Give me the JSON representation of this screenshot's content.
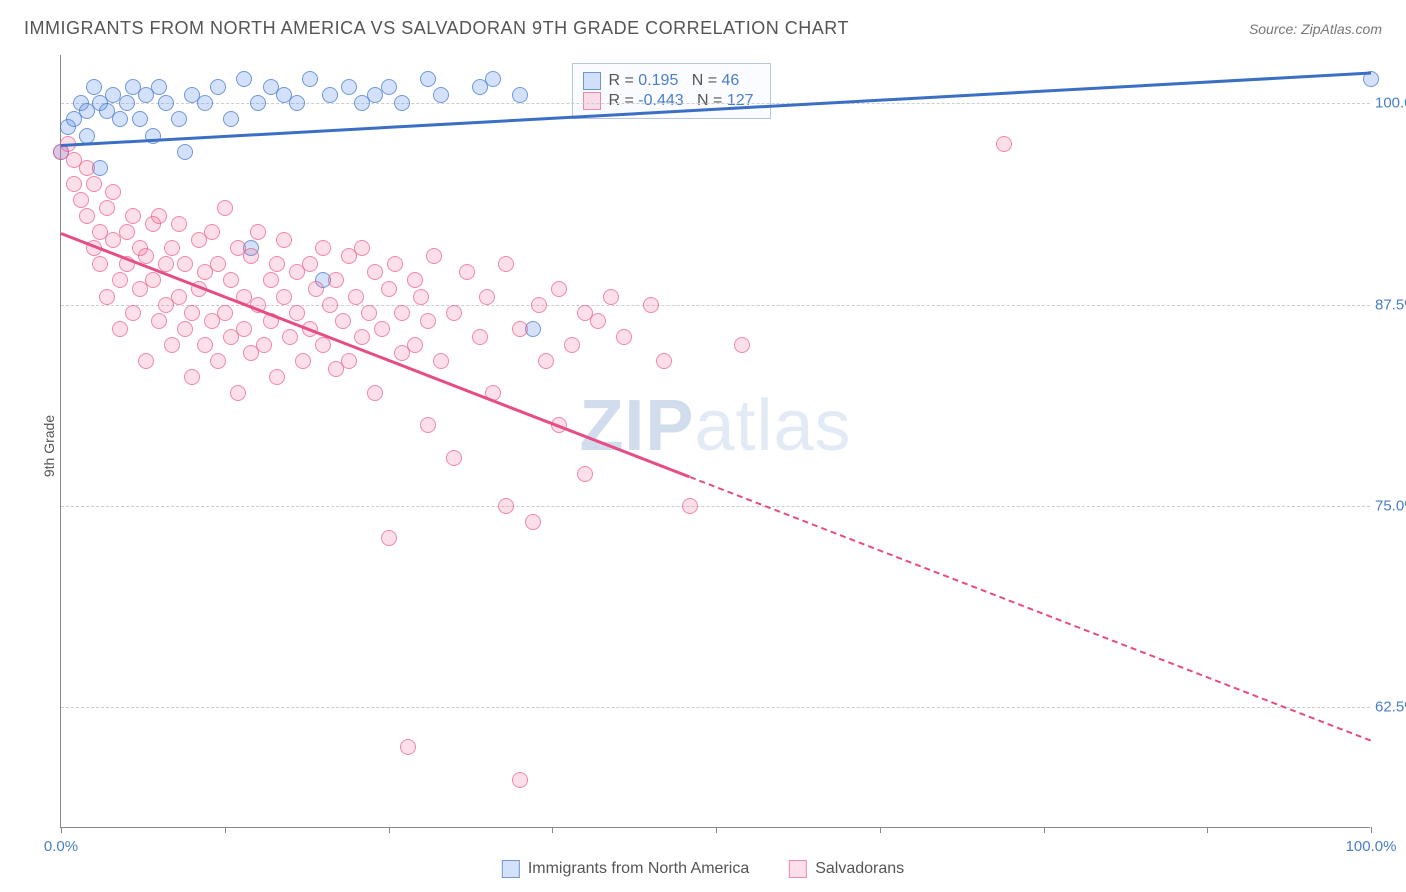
{
  "header": {
    "title": "IMMIGRANTS FROM NORTH AMERICA VS SALVADORAN 9TH GRADE CORRELATION CHART",
    "source_prefix": "Source: ",
    "source": "ZipAtlas.com"
  },
  "chart": {
    "type": "scatter",
    "ylabel": "9th Grade",
    "background_color": "#ffffff",
    "grid_color": "#cccccc",
    "axis_color": "#888888",
    "xlim": [
      0,
      100
    ],
    "ylim": [
      55,
      103
    ],
    "xtick_labels": [
      "0.0%",
      "100.0%"
    ],
    "xtick_positions": [
      0,
      100
    ],
    "xtick_marks": [
      0,
      12.5,
      25,
      37.5,
      50,
      62.5,
      75,
      87.5,
      100
    ],
    "ytick_labels": [
      "62.5%",
      "75.0%",
      "87.5%",
      "100.0%"
    ],
    "ytick_positions": [
      62.5,
      75,
      87.5,
      100
    ],
    "watermark": {
      "bold": "ZIP",
      "rest": "atlas"
    },
    "series": [
      {
        "name": "Immigrants from North America",
        "color_fill": "rgba(100, 149, 237, 0.28)",
        "color_border": "rgba(70, 120, 200, 0.7)",
        "marker_radius": 8,
        "stats": {
          "r_label": "R =",
          "r": "0.195",
          "n_label": "N =",
          "n": "46"
        },
        "trend": {
          "x1": 0,
          "y1": 97.5,
          "x2": 100,
          "y2": 102,
          "color": "#3a6fc4",
          "width": 3,
          "dash_from_x": null
        },
        "points": [
          [
            0,
            97
          ],
          [
            0.5,
            98.5
          ],
          [
            1,
            99
          ],
          [
            1.5,
            100
          ],
          [
            2,
            99.5
          ],
          [
            2,
            98
          ],
          [
            2.5,
            101
          ],
          [
            3,
            100
          ],
          [
            3,
            96
          ],
          [
            3.5,
            99.5
          ],
          [
            4,
            100.5
          ],
          [
            4.5,
            99
          ],
          [
            5,
            100
          ],
          [
            5.5,
            101
          ],
          [
            6,
            99
          ],
          [
            6.5,
            100.5
          ],
          [
            7,
            98
          ],
          [
            7.5,
            101
          ],
          [
            8,
            100
          ],
          [
            9,
            99
          ],
          [
            9.5,
            97
          ],
          [
            10,
            100.5
          ],
          [
            11,
            100
          ],
          [
            12,
            101
          ],
          [
            13,
            99
          ],
          [
            14,
            101.5
          ],
          [
            14.5,
            91
          ],
          [
            15,
            100
          ],
          [
            16,
            101
          ],
          [
            17,
            100.5
          ],
          [
            18,
            100
          ],
          [
            19,
            101.5
          ],
          [
            20,
            89
          ],
          [
            20.5,
            100.5
          ],
          [
            22,
            101
          ],
          [
            23,
            100
          ],
          [
            24,
            100.5
          ],
          [
            25,
            101
          ],
          [
            26,
            100
          ],
          [
            28,
            101.5
          ],
          [
            29,
            100.5
          ],
          [
            32,
            101
          ],
          [
            33,
            101.5
          ],
          [
            35,
            100.5
          ],
          [
            36,
            86
          ],
          [
            100,
            101.5
          ]
        ]
      },
      {
        "name": "Salvadorans",
        "color_fill": "rgba(240, 110, 150, 0.22)",
        "color_border": "rgba(230, 90, 130, 0.65)",
        "marker_radius": 8,
        "stats": {
          "r_label": "R =",
          "r": "-0.443",
          "n_label": "N =",
          "n": "127"
        },
        "trend": {
          "x1": 0,
          "y1": 92,
          "x2": 100,
          "y2": 60.5,
          "color": "#e64d85",
          "width": 3,
          "dash_from_x": 48
        },
        "points": [
          [
            0,
            97
          ],
          [
            0.5,
            97.5
          ],
          [
            1,
            96.5
          ],
          [
            1,
            95
          ],
          [
            1.5,
            94
          ],
          [
            2,
            96
          ],
          [
            2,
            93
          ],
          [
            2.5,
            91
          ],
          [
            2.5,
            95
          ],
          [
            3,
            92
          ],
          [
            3,
            90
          ],
          [
            3.5,
            93.5
          ],
          [
            3.5,
            88
          ],
          [
            4,
            94.5
          ],
          [
            4,
            91.5
          ],
          [
            4.5,
            89
          ],
          [
            4.5,
            86
          ],
          [
            5,
            92
          ],
          [
            5,
            90
          ],
          [
            5.5,
            93
          ],
          [
            5.5,
            87
          ],
          [
            6,
            91
          ],
          [
            6,
            88.5
          ],
          [
            6.5,
            90.5
          ],
          [
            6.5,
            84
          ],
          [
            7,
            92.5
          ],
          [
            7,
            89
          ],
          [
            7.5,
            86.5
          ],
          [
            7.5,
            93
          ],
          [
            8,
            90
          ],
          [
            8,
            87.5
          ],
          [
            8.5,
            91
          ],
          [
            8.5,
            85
          ],
          [
            9,
            88
          ],
          [
            9,
            92.5
          ],
          [
            9.5,
            86
          ],
          [
            9.5,
            90
          ],
          [
            10,
            87
          ],
          [
            10,
            83
          ],
          [
            10.5,
            91.5
          ],
          [
            10.5,
            88.5
          ],
          [
            11,
            85
          ],
          [
            11,
            89.5
          ],
          [
            11.5,
            92
          ],
          [
            11.5,
            86.5
          ],
          [
            12,
            84
          ],
          [
            12,
            90
          ],
          [
            12.5,
            87
          ],
          [
            12.5,
            93.5
          ],
          [
            13,
            85.5
          ],
          [
            13,
            89
          ],
          [
            13.5,
            91
          ],
          [
            13.5,
            82
          ],
          [
            14,
            86
          ],
          [
            14,
            88
          ],
          [
            14.5,
            90.5
          ],
          [
            14.5,
            84.5
          ],
          [
            15,
            87.5
          ],
          [
            15,
            92
          ],
          [
            15.5,
            85
          ],
          [
            16,
            89
          ],
          [
            16,
            86.5
          ],
          [
            16.5,
            90
          ],
          [
            16.5,
            83
          ],
          [
            17,
            88
          ],
          [
            17,
            91.5
          ],
          [
            17.5,
            85.5
          ],
          [
            18,
            87
          ],
          [
            18,
            89.5
          ],
          [
            18.5,
            84
          ],
          [
            19,
            90
          ],
          [
            19,
            86
          ],
          [
            19.5,
            88.5
          ],
          [
            20,
            91
          ],
          [
            20,
            85
          ],
          [
            20.5,
            87.5
          ],
          [
            21,
            89
          ],
          [
            21,
            83.5
          ],
          [
            21.5,
            86.5
          ],
          [
            22,
            90.5
          ],
          [
            22,
            84
          ],
          [
            22.5,
            88
          ],
          [
            23,
            85.5
          ],
          [
            23,
            91
          ],
          [
            23.5,
            87
          ],
          [
            24,
            89.5
          ],
          [
            24,
            82
          ],
          [
            24.5,
            86
          ],
          [
            25,
            88.5
          ],
          [
            25,
            73
          ],
          [
            25.5,
            90
          ],
          [
            26,
            84.5
          ],
          [
            26,
            87
          ],
          [
            26.5,
            60
          ],
          [
            27,
            89
          ],
          [
            27,
            85
          ],
          [
            27.5,
            88
          ],
          [
            28,
            80
          ],
          [
            28,
            86.5
          ],
          [
            28.5,
            90.5
          ],
          [
            29,
            84
          ],
          [
            30,
            87
          ],
          [
            30,
            78
          ],
          [
            31,
            89.5
          ],
          [
            32,
            85.5
          ],
          [
            32.5,
            88
          ],
          [
            33,
            82
          ],
          [
            34,
            90
          ],
          [
            34,
            75
          ],
          [
            35,
            86
          ],
          [
            35,
            58
          ],
          [
            36,
            74
          ],
          [
            36.5,
            87.5
          ],
          [
            37,
            84
          ],
          [
            38,
            80
          ],
          [
            38,
            88.5
          ],
          [
            39,
            85
          ],
          [
            40,
            87
          ],
          [
            40,
            77
          ],
          [
            41,
            86.5
          ],
          [
            42,
            88
          ],
          [
            43,
            85.5
          ],
          [
            45,
            87.5
          ],
          [
            46,
            84
          ],
          [
            48,
            75
          ],
          [
            52,
            85
          ],
          [
            72,
            97.5
          ]
        ]
      }
    ],
    "legend_items": [
      "Immigrants from North America",
      "Salvadorans"
    ]
  }
}
